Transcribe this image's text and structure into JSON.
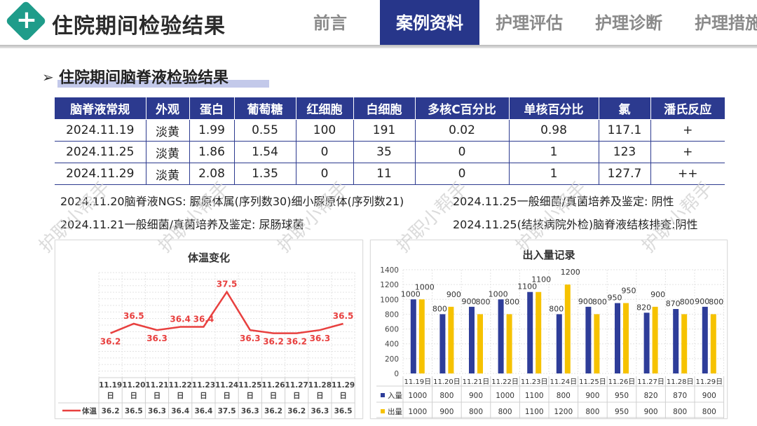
{
  "header": {
    "title": "住院期间检验结果",
    "tabs": [
      {
        "label": "前言",
        "active": false
      },
      {
        "label": "案例资料",
        "active": true
      },
      {
        "label": "护理评估",
        "active": false
      },
      {
        "label": "护理诊断",
        "active": false
      },
      {
        "label": "护理措施",
        "active": false
      }
    ],
    "accent_color": "#27368a",
    "logo_color": "#1f9c8a"
  },
  "section": {
    "arrow": "➢",
    "title": "住院期间脑脊液检验结果"
  },
  "lab_table": {
    "headers": [
      "脑脊液常规",
      "外观",
      "蛋白",
      "葡萄糖",
      "红细胞",
      "白细胞",
      "多核C百分比",
      "单核百分比",
      "氯",
      "潘氏反应"
    ],
    "rows": [
      [
        "2024.11.19",
        "淡黄",
        "1.99",
        "0.55",
        "100",
        "191",
        "0.02",
        "0.98",
        "117.1",
        "+"
      ],
      [
        "2024.11.25",
        "淡黄",
        "1.86",
        "1.54",
        "0",
        "35",
        "0",
        "1",
        "123",
        "+"
      ],
      [
        "2024.11.29",
        "淡黄",
        "2.08",
        "1.35",
        "0",
        "11",
        "0",
        "1",
        "127.7",
        "++"
      ]
    ]
  },
  "notes": {
    "n1": "2024.11.20脑脊液NGS: 脲原体属(序列数30)细小脲原体(序列数21)",
    "n2": "2024.11.25一般细菌/真菌培养及鉴定: 阴性",
    "n3": "2024.11.21一般细菌/真菌培养及鉴定:  尿肠球菌",
    "n4": "2024.11.25(结核病院外检)脑脊液结核排查:阴性"
  },
  "watermark": "护职小帮手",
  "chart_data": [
    {
      "type": "line",
      "title": "体温变化",
      "categories": [
        "11.19日",
        "11.20日",
        "11.21日",
        "11.22日",
        "11.23日",
        "11.24日",
        "11.25日",
        "11.26日",
        "11.27日",
        "11.28日",
        "11.29日"
      ],
      "series": [
        {
          "name": "体温",
          "values": [
            36.2,
            36.5,
            36.3,
            36.4,
            36.4,
            37.5,
            36.3,
            36.2,
            36.2,
            36.3,
            36.5
          ],
          "color": "#e8403f"
        }
      ],
      "data_table": true,
      "grid": true
    },
    {
      "type": "bar",
      "title": "出入量记录",
      "categories": [
        "11.19日",
        "11.20日",
        "11.21日",
        "11.22日",
        "11.23日",
        "11.24日",
        "11.25日",
        "11.26日",
        "11.27日",
        "11.28日",
        "11.29日"
      ],
      "series": [
        {
          "name": "入量",
          "values": [
            1000,
            800,
            900,
            1000,
            1100,
            800,
            900,
            950,
            820,
            870,
            900
          ],
          "color": "#2e3d99"
        },
        {
          "name": "出量",
          "values": [
            1000,
            900,
            800,
            800,
            1100,
            1200,
            800,
            950,
            900,
            800,
            800
          ],
          "color": "#f6c200"
        }
      ],
      "ylim": [
        0,
        1400
      ],
      "yticks": [
        "0",
        "200",
        "400",
        "600",
        "800",
        "1000",
        "1200",
        "1400"
      ],
      "data_table": true,
      "grid": true
    }
  ]
}
